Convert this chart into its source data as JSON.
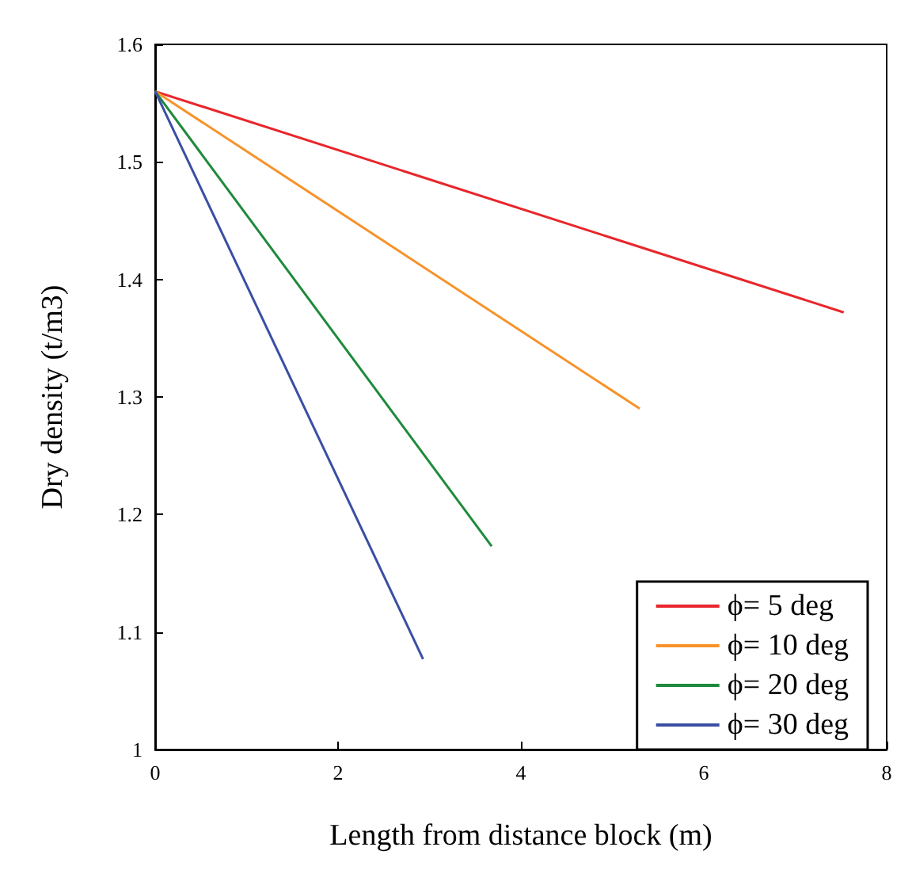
{
  "chart_data": {
    "type": "line",
    "xlabel": "Length from distance block (m)",
    "ylabel": "Dry density (t/m3)",
    "xlim": [
      0,
      8
    ],
    "xticks": [
      0,
      2,
      4,
      6,
      8
    ],
    "ylim": [
      1,
      1.6
    ],
    "yticks": [
      1,
      1.1,
      1.2,
      1.3,
      1.4,
      1.5,
      1.6
    ],
    "grid": false,
    "legend": "bottom right",
    "marker": "none",
    "line_style": "solid",
    "series": [
      {
        "name": "ϕ= 5 deg",
        "color": "#e8262b",
        "x": [
          0,
          7.53
        ],
        "values": [
          1.56,
          1.372
        ]
      },
      {
        "name": "ϕ= 10 deg",
        "color": "#f7922a",
        "x": [
          0,
          5.3
        ],
        "values": [
          1.56,
          1.29
        ]
      },
      {
        "name": "ϕ= 20 deg",
        "color": "#1f8a3c",
        "x": [
          0,
          3.68
        ],
        "values": [
          1.56,
          1.173
        ]
      },
      {
        "name": "ϕ= 30 deg",
        "color": "#3a4fa3",
        "x": [
          0,
          2.93
        ],
        "values": [
          1.56,
          1.077
        ]
      }
    ]
  }
}
